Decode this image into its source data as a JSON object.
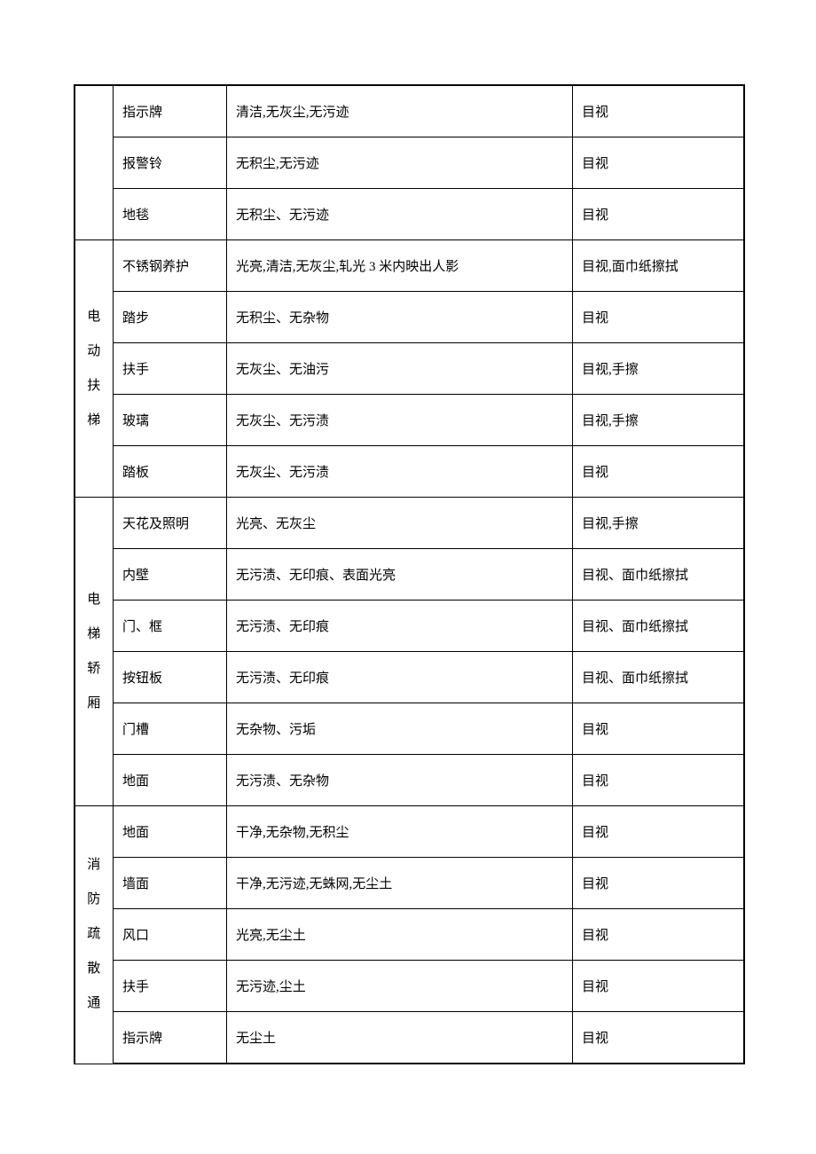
{
  "table": {
    "border_color": "#000000",
    "background_color": "#ffffff",
    "font_family": "SimSun",
    "font_size": 15,
    "column_widths": {
      "category": 44,
      "item": 128,
      "standard": 390,
      "method": 193
    },
    "groups": [
      {
        "category": "",
        "rows": [
          {
            "item": "指示牌",
            "standard": "清洁,无灰尘,无污迹",
            "method": "目视"
          },
          {
            "item": "报警铃",
            "standard": "无积尘,无污迹",
            "method": "目视"
          },
          {
            "item": "地毯",
            "standard": "无积尘、无污迹",
            "method": "目视"
          }
        ]
      },
      {
        "category": "电动扶梯",
        "rows": [
          {
            "item": "不锈钢养护",
            "standard": "光亮,清洁,无灰尘,轧光 3 米内映出人影",
            "method": "目视,面巾纸擦拭"
          },
          {
            "item": "踏步",
            "standard": "无积尘、无杂物",
            "method": "目视"
          },
          {
            "item": "扶手",
            "standard": "无灰尘、无油污",
            "method": "目视,手擦"
          },
          {
            "item": "玻璃",
            "standard": "无灰尘、无污渍",
            "method": "目视,手擦"
          },
          {
            "item": "踏板",
            "standard": "无灰尘、无污渍",
            "method": "目视"
          }
        ]
      },
      {
        "category": "电梯轿厢",
        "rows": [
          {
            "item": "天花及照明",
            "standard": "光亮、无灰尘",
            "method": "目视,手擦"
          },
          {
            "item": "内壁",
            "standard": "无污渍、无印痕、表面光亮",
            "method": "目视、面巾纸擦拭"
          },
          {
            "item": "门、框",
            "standard": "无污渍、无印痕",
            "method": "目视、面巾纸擦拭"
          },
          {
            "item": "按钮板",
            "standard": "无污渍、无印痕",
            "method": "目视、面巾纸擦拭"
          },
          {
            "item": "门槽",
            "standard": "无杂物、污垢",
            "method": "目视"
          },
          {
            "item": "地面",
            "standard": "无污渍、无杂物",
            "method": "目视"
          }
        ]
      },
      {
        "category": "消防疏散通",
        "rows": [
          {
            "item": "地面",
            "standard": "干净,无杂物,无积尘",
            "method": "目视"
          },
          {
            "item": "墙面",
            "standard": "干净,无污迹,无蛛网,无尘土",
            "method": "目视"
          },
          {
            "item": "风口",
            "standard": "光亮,无尘土",
            "method": "目视"
          },
          {
            "item": "扶手",
            "standard": "无污迹,尘土",
            "method": "目视"
          },
          {
            "item": "指示牌",
            "standard": "无尘土",
            "method": "目视"
          }
        ]
      }
    ]
  }
}
